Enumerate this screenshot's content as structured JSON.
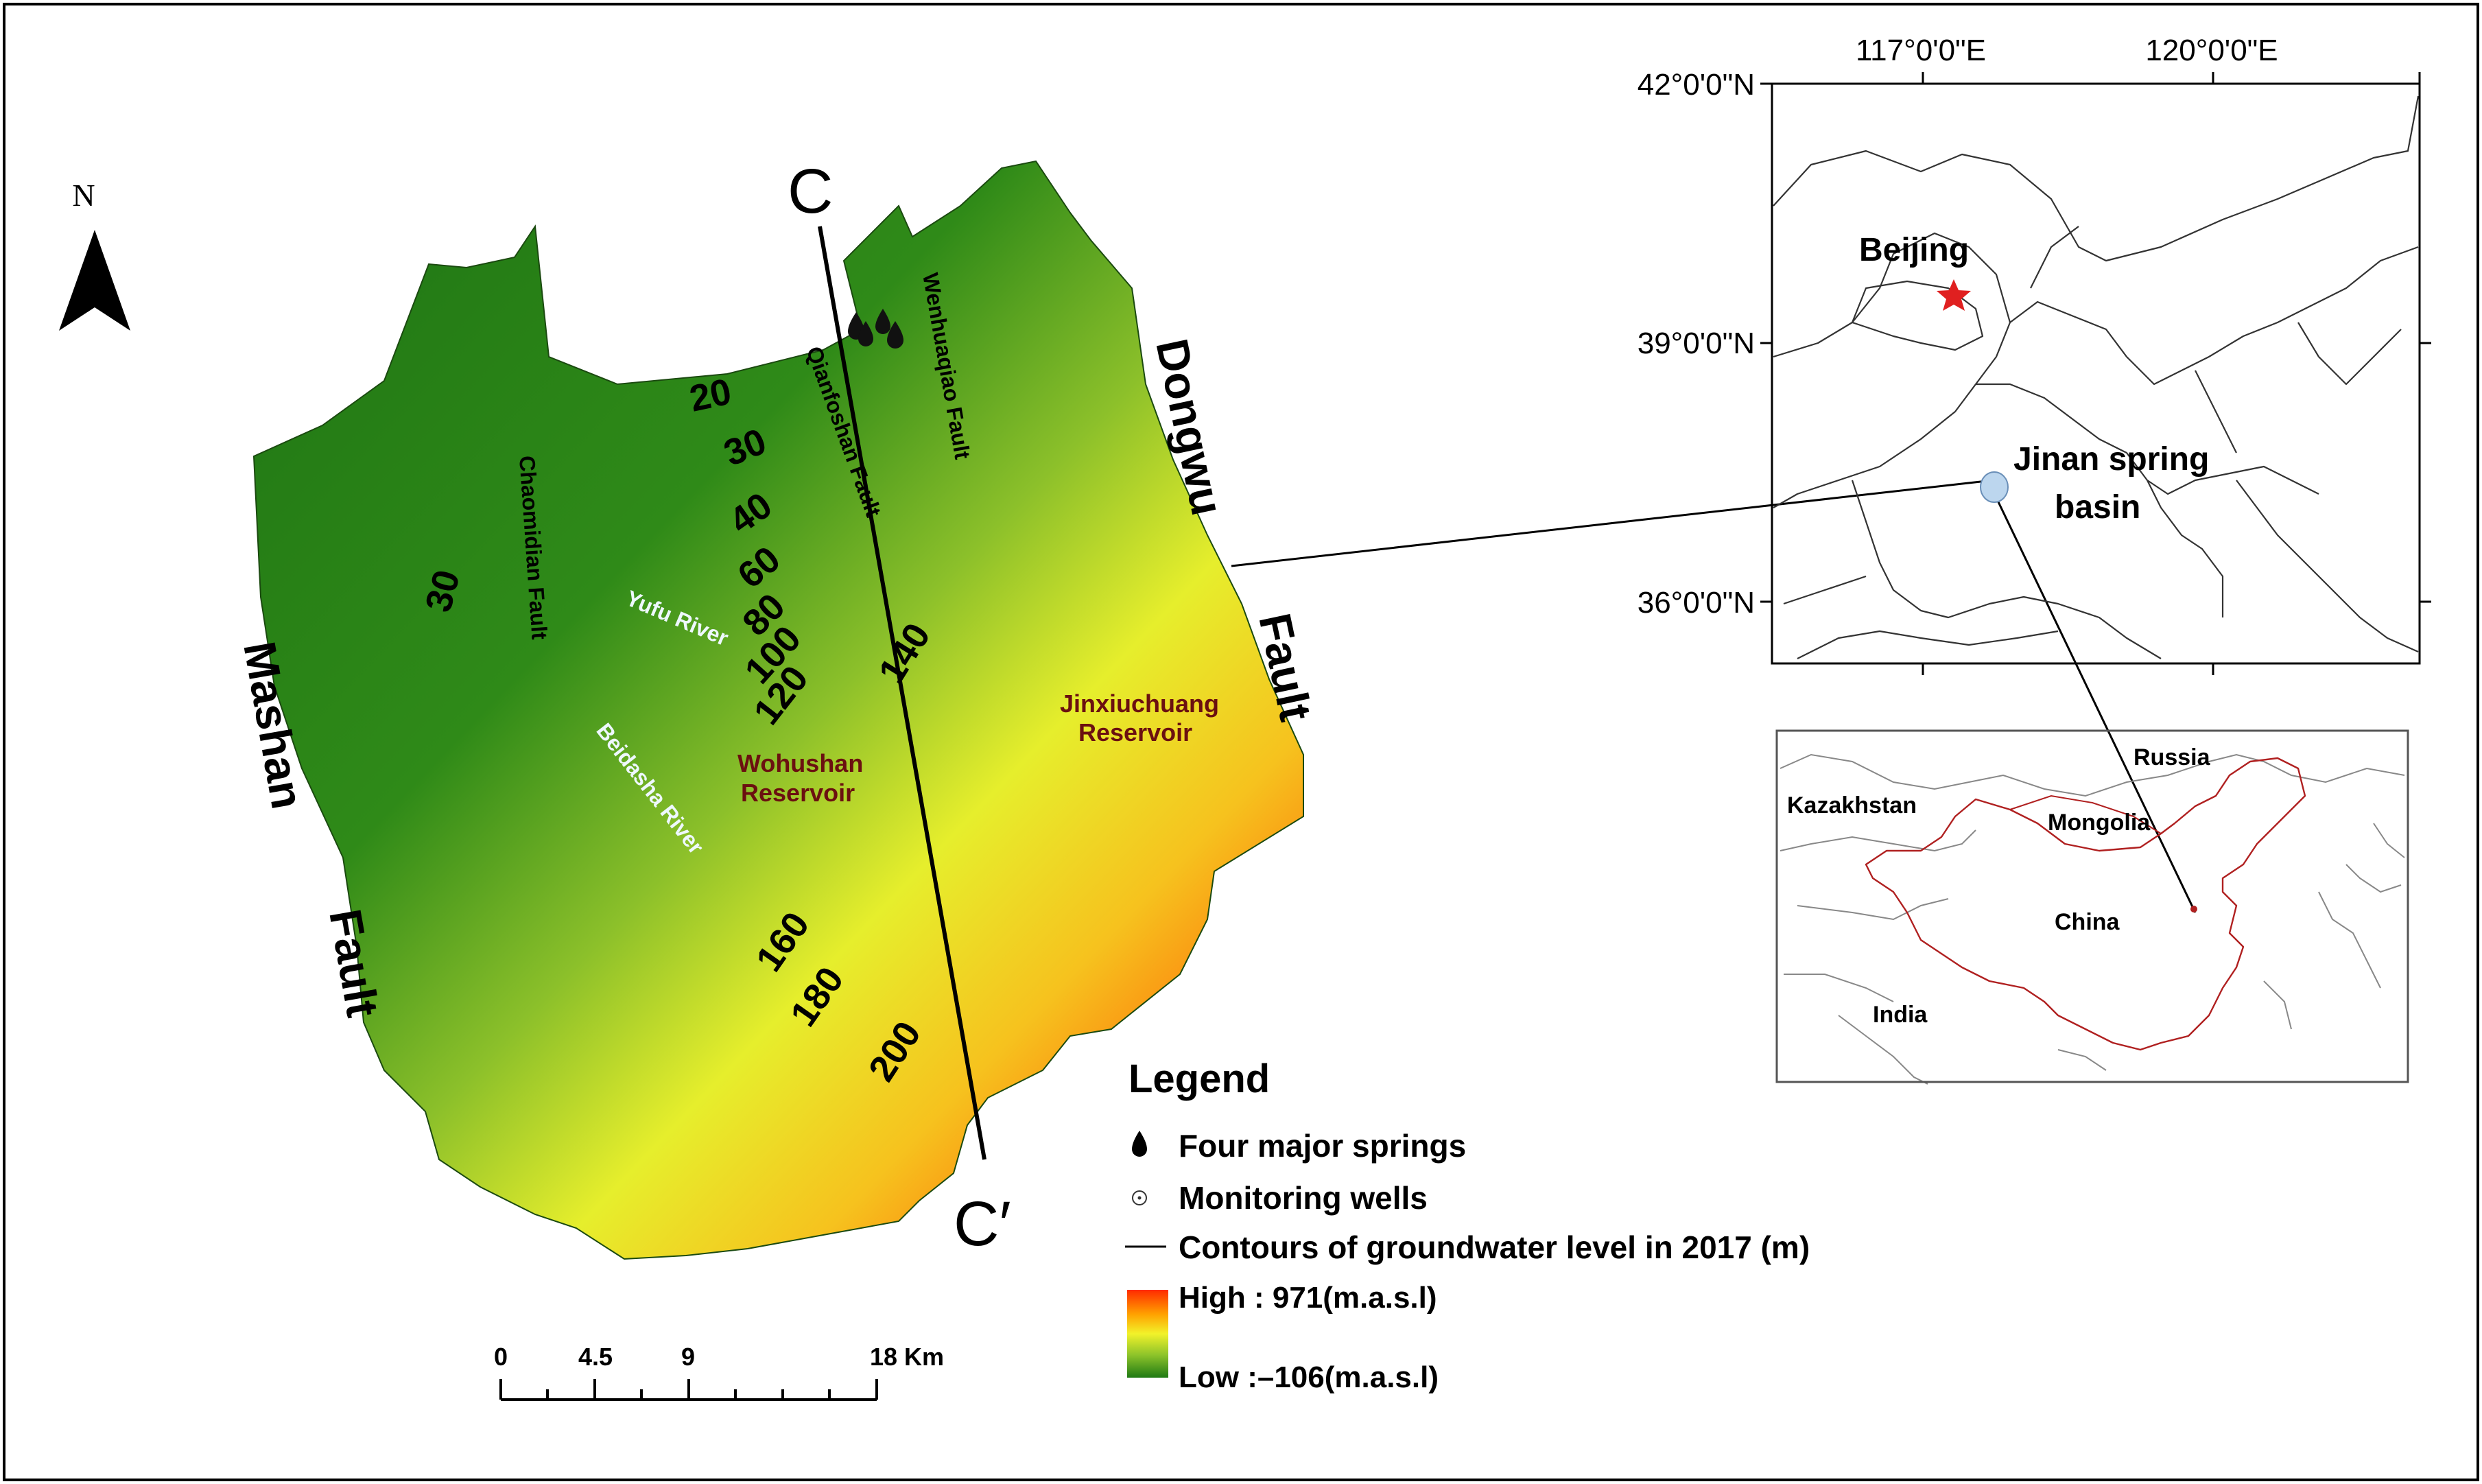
{
  "main_map": {
    "north_label": "N",
    "profile": {
      "start": "C",
      "end": "C′"
    },
    "contour_labels": [
      "20",
      "30",
      "30",
      "40",
      "60",
      "80",
      "100",
      "120",
      "140",
      "160",
      "180",
      "200"
    ],
    "faults": {
      "mashan": [
        "Mashan",
        "Fault"
      ],
      "dongwu": [
        "Dongwu",
        "Fault"
      ],
      "chaomidian": "Chaomidian Fault",
      "qianfoshan": "Qianfoshan Fault",
      "wenhuaqiao": "Wenhuaqiao Fault"
    },
    "rivers": {
      "yufu": "Yufu River",
      "beidasha": "Beidasha River"
    },
    "reservoirs": {
      "wohushan": [
        "Wohushan",
        "Reservoir"
      ],
      "jinxiuchuang": [
        "Jinxiuchuang",
        "Reservoir"
      ]
    },
    "colors": {
      "low": "#1f7a14",
      "mid": "#e9ef2a",
      "high": "#ff2b00",
      "river": "#25b6e6",
      "fault": "#6b1010",
      "reservoir_label": "#6b1010"
    }
  },
  "legend": {
    "title": "Legend",
    "items": [
      {
        "icon": "spring-icon",
        "label": "Four major springs"
      },
      {
        "icon": "well-icon",
        "label": "Monitoring wells"
      },
      {
        "icon": "contour-line-icon",
        "label": "Contours of groundwater level in 2017 (m)"
      }
    ],
    "elevation": {
      "high": "High : 971(m.a.s.l)",
      "low": "Low :–106(m.a.s.l)"
    }
  },
  "scale_bar": {
    "ticks": [
      "0",
      "4.5",
      "9",
      "18 Km"
    ]
  },
  "regional_map": {
    "lon_labels": [
      "117°0'0\"E",
      "120°0'0\"E"
    ],
    "lat_labels": [
      "42°0'0\"N",
      "39°0'0\"N",
      "36°0'0\"N"
    ],
    "beijing": "Beijing",
    "study_area": [
      "Jinan spring",
      "basin"
    ]
  },
  "country_map": {
    "labels": [
      "Russia",
      "Kazakhstan",
      "Mongolia",
      "China",
      "India"
    ]
  }
}
